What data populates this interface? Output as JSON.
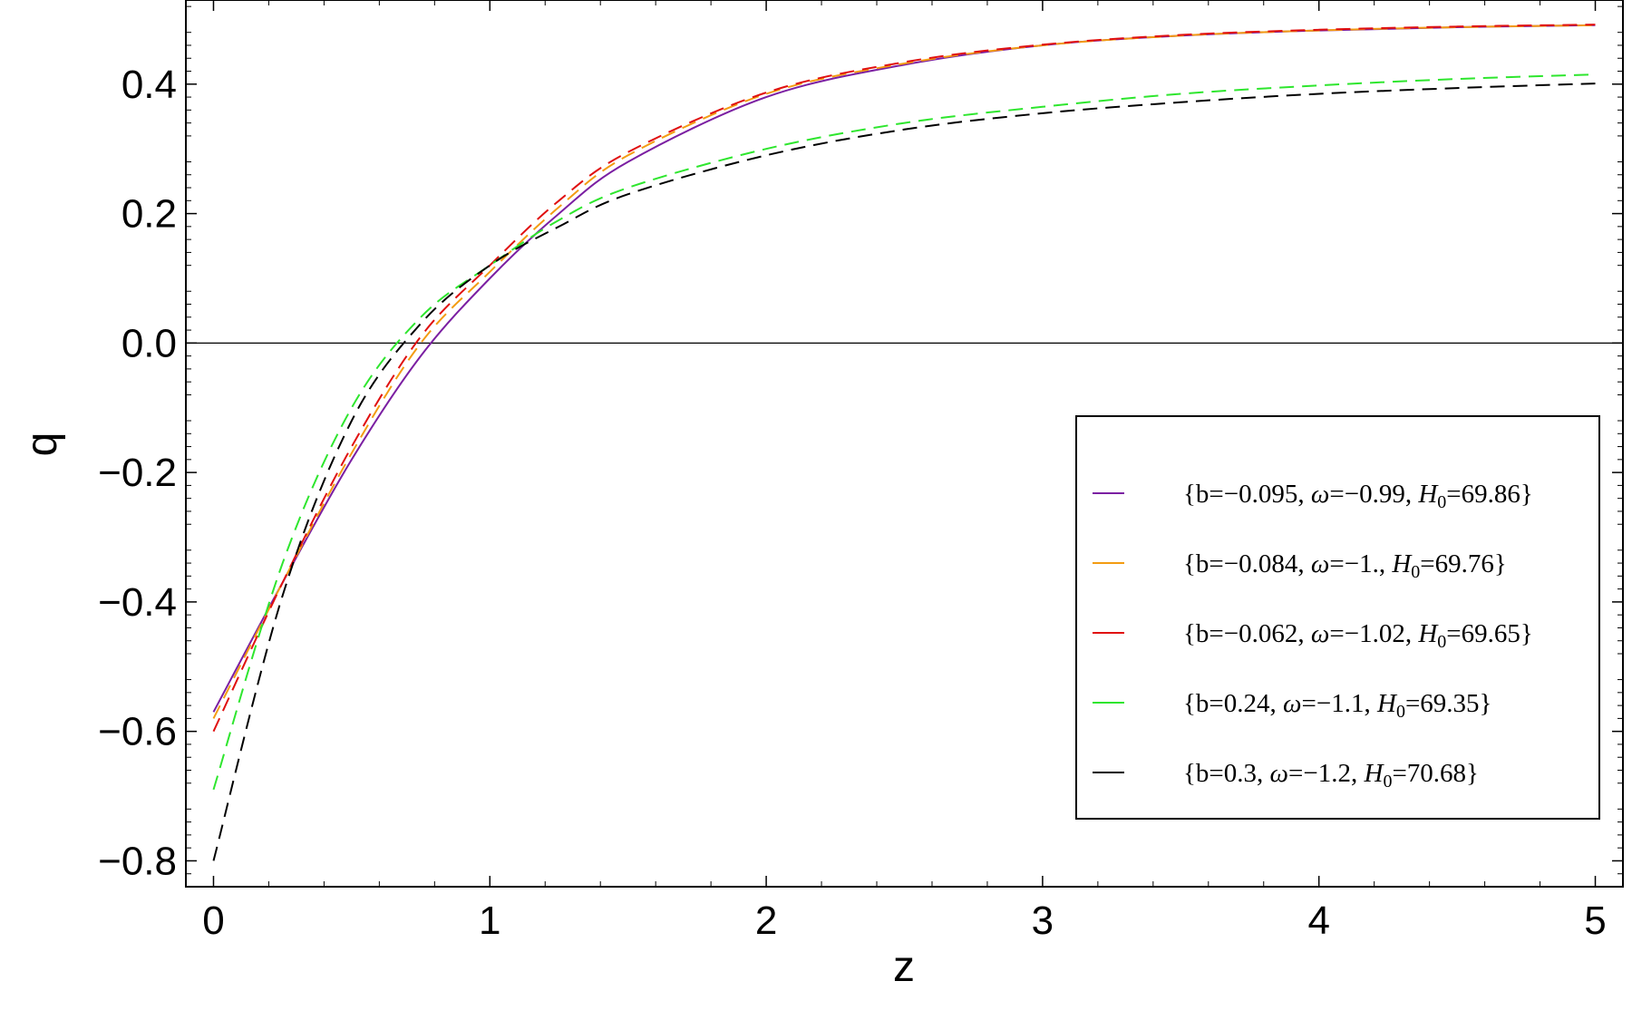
{
  "chart_data": {
    "type": "line",
    "xlabel": "z",
    "ylabel": "q",
    "xlim": [
      -0.1,
      5.1
    ],
    "ylim": [
      -0.84,
      0.53
    ],
    "xticks": [
      0,
      1,
      2,
      3,
      4,
      5
    ],
    "xtick_labels": [
      "0",
      "1",
      "2",
      "3",
      "4",
      "5"
    ],
    "yticks": [
      -0.8,
      -0.6,
      -0.4,
      -0.2,
      0.0,
      0.2,
      0.4
    ],
    "ytick_labels": [
      "−0.8",
      "−0.6",
      "−0.4",
      "−0.2",
      "0.0",
      "0.2",
      "0.4"
    ],
    "zero_line": true,
    "grid": false,
    "legend_position": "right",
    "x": [
      0,
      0.25,
      0.5,
      0.75,
      1.0,
      1.25,
      1.5,
      2.0,
      2.5,
      3.0,
      3.5,
      4.0,
      4.5,
      5.0
    ],
    "series": [
      {
        "name": "{b=−0.095, ω=−0.99, H₀=69.86}",
        "legend": {
          "pre": "{b=−0.095, ",
          "omega": "ω",
          "mid": "=−0.99, ",
          "H": "H",
          "sub": "0",
          "post": "=69.86}"
        },
        "color": "#7b1fa2",
        "dashed": false,
        "values": [
          -0.57,
          -0.37,
          -0.18,
          -0.02,
          0.1,
          0.2,
          0.28,
          0.38,
          0.43,
          0.46,
          0.475,
          0.483,
          0.488,
          0.491
        ]
      },
      {
        "name": "{b=−0.084, ω=−1., H₀=69.76}",
        "legend": {
          "pre": "{b=−0.084, ",
          "omega": "ω",
          "mid": "=−1., ",
          "H": "H",
          "sub": "0",
          "post": "=69.76}"
        },
        "color": "#f39c12",
        "dashed": true,
        "values": [
          -0.58,
          -0.37,
          -0.17,
          0.0,
          0.11,
          0.21,
          0.29,
          0.385,
          0.432,
          0.46,
          0.475,
          0.483,
          0.488,
          0.491
        ]
      },
      {
        "name": "{b=−0.062, ω=−1.02, H₀=69.65}",
        "legend": {
          "pre": "{b=−0.062, ",
          "omega": "ω",
          "mid": "=−1.02, ",
          "H": "H",
          "sub": "0",
          "post": "=69.65}"
        },
        "color": "#e01010",
        "dashed": true,
        "values": [
          -0.6,
          -0.37,
          -0.16,
          0.01,
          0.12,
          0.22,
          0.295,
          0.387,
          0.434,
          0.461,
          0.476,
          0.484,
          0.489,
          0.492
        ]
      },
      {
        "name": "{b=0.24, ω=−1.1, H₀=69.35}",
        "legend": {
          "pre": "{b=0.24, ",
          "omega": "ω",
          "mid": "=−1.1, ",
          "H": "H",
          "sub": "0",
          "post": "=69.35}"
        },
        "color": "#2ee62e",
        "dashed": true,
        "values": [
          -0.69,
          -0.34,
          -0.1,
          0.04,
          0.12,
          0.19,
          0.24,
          0.3,
          0.34,
          0.365,
          0.385,
          0.398,
          0.408,
          0.415
        ]
      },
      {
        "name": "{b=0.3, ω=−1.2, H₀=70.68}",
        "legend": {
          "pre": "{b=0.3, ",
          "omega": "ω",
          "mid": "=−1.2, ",
          "H": "H",
          "sub": "0",
          "post": "=70.68}"
        },
        "color": "#000000",
        "dashed": true,
        "values": [
          -0.8,
          -0.39,
          -0.12,
          0.03,
          0.12,
          0.18,
          0.23,
          0.29,
          0.33,
          0.355,
          0.372,
          0.385,
          0.394,
          0.401
        ]
      }
    ]
  }
}
